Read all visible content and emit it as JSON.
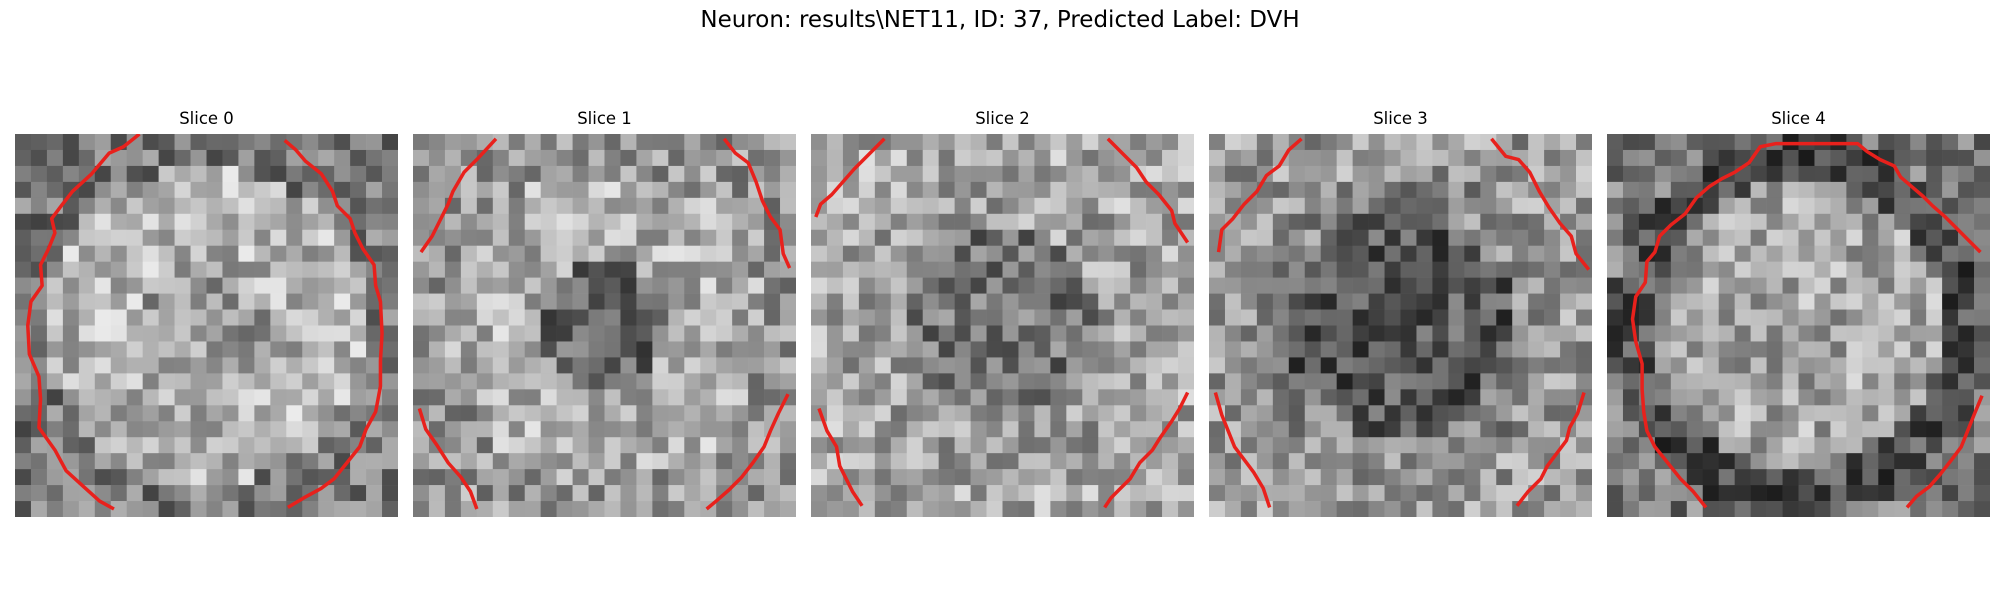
{
  "figure": {
    "title": "Neuron: results\\NET11, ID: 37, Predicted Label: DVH"
  },
  "contour_color": "#e8211c",
  "grid": {
    "rows": 24,
    "cols": 24
  },
  "slices": [
    {
      "title": "Slice 0",
      "seed": 11,
      "bias": "bright"
    },
    {
      "title": "Slice 1",
      "seed": 23,
      "bias": "ring"
    },
    {
      "title": "Slice 2",
      "seed": 37,
      "bias": "mid"
    },
    {
      "title": "Slice 3",
      "seed": 41,
      "bias": "dark"
    },
    {
      "title": "Slice 4",
      "seed": 53,
      "bias": "ring-dark"
    }
  ]
}
